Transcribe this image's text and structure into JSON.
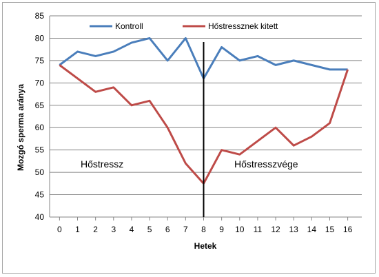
{
  "chart_data": {
    "type": "line",
    "title": "",
    "xlabel": "Hetek",
    "ylabel": "Mozgó sperma aránya",
    "ylim": [
      40,
      85
    ],
    "xlim": [
      0,
      16
    ],
    "y_ticks": [
      40,
      45,
      50,
      55,
      60,
      65,
      70,
      75,
      80,
      85
    ],
    "x": [
      0,
      1,
      2,
      3,
      4,
      5,
      6,
      7,
      8,
      9,
      10,
      11,
      12,
      13,
      14,
      15,
      16
    ],
    "grid": true,
    "legend_position": "top",
    "series": [
      {
        "name": "Kontroll",
        "color": "#4a7ebb",
        "values": [
          74,
          77,
          76,
          77,
          79,
          80,
          75,
          80,
          71,
          78,
          75,
          76,
          74,
          75,
          74,
          73,
          73
        ]
      },
      {
        "name": "Hőstressznek kitett",
        "color": "#be4b48",
        "values": [
          74,
          71,
          68,
          69,
          65,
          66,
          60,
          52,
          47.5,
          55,
          54,
          57,
          60,
          56,
          58,
          61,
          73
        ]
      }
    ],
    "annotations": {
      "left": "Hőstressz",
      "right": "Hőstresszvége"
    },
    "marker_line_x": 8
  }
}
